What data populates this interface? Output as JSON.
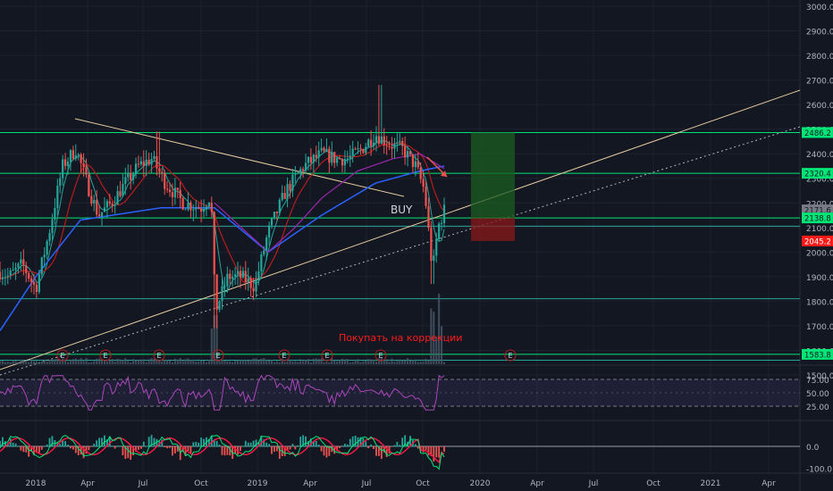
{
  "chart_data": {
    "type": "candlestick",
    "symbol_panel": {
      "y_ticks": [
        1500,
        1600,
        1700,
        1800,
        1900,
        2000,
        2100,
        2200,
        2300,
        2400,
        2500,
        2600,
        2700,
        2800,
        2900,
        3000
      ],
      "tick_labels": [
        "1500.0",
        "1600.0",
        "1700.0",
        "1800.0",
        "1900.0",
        "2000.0",
        "2100.0",
        "2200.0",
        "2300.0",
        "2400.0",
        "2500.0",
        "2600.0",
        "2700.0",
        "2800.0",
        "2900.0",
        "3000.0"
      ],
      "ylim": [
        1450,
        3010
      ],
      "price_badges": [
        {
          "label": "2486.2",
          "value": 2486.2,
          "color": "#00e676"
        },
        {
          "label": "2320.4",
          "value": 2320.4,
          "color": "#00e676"
        },
        {
          "label": "2171.6",
          "value": 2171.6,
          "color": "#787b86"
        },
        {
          "label": "2138.8",
          "value": 2138.8,
          "color": "#00e676"
        },
        {
          "label": "2045.2",
          "value": 2045.2,
          "color": "#ff1a1a"
        },
        {
          "label": "1583.8",
          "value": 1583.8,
          "color": "#00e676"
        }
      ],
      "horizontal_levels": [
        {
          "value": 2486.2,
          "color": "#00e676"
        },
        {
          "value": 2320.4,
          "color": "#00e676"
        },
        {
          "value": 2138.8,
          "color": "#00e676"
        },
        {
          "value": 2105,
          "color": "#26a69a"
        },
        {
          "value": 1810,
          "color": "#26a69a"
        },
        {
          "value": 1583.8,
          "color": "#00e676"
        },
        {
          "value": 1560,
          "color": "#26a69a"
        }
      ],
      "annotations": [
        {
          "text": "BUY",
          "color": "#d1d4dc"
        },
        {
          "text": "Покупать на коррекции",
          "color": "#ff1a1a"
        }
      ],
      "earnings_marker": "E",
      "earnings_marker_count": 8,
      "position": {
        "entry": 2138.8,
        "target": 2486.2,
        "stop": 2045.2
      }
    },
    "rsi_panel": {
      "tick_labels": [
        "75.00",
        "50.00",
        "25.00"
      ],
      "ticks": [
        75,
        50,
        25
      ],
      "ylim": [
        10,
        95
      ],
      "band": [
        25,
        75
      ]
    },
    "macd_panel": {
      "tick_labels": [
        "0.0",
        "-100.0"
      ],
      "ticks": [
        0,
        -100
      ],
      "ylim": [
        -135,
        100
      ]
    },
    "x_axis": {
      "labels": [
        "2018",
        "Apr",
        "Jul",
        "Oct",
        "2019",
        "Apr",
        "Jul",
        "Oct",
        "2020",
        "Apr",
        "Jul",
        "Oct",
        "2021",
        "Apr"
      ]
    }
  }
}
